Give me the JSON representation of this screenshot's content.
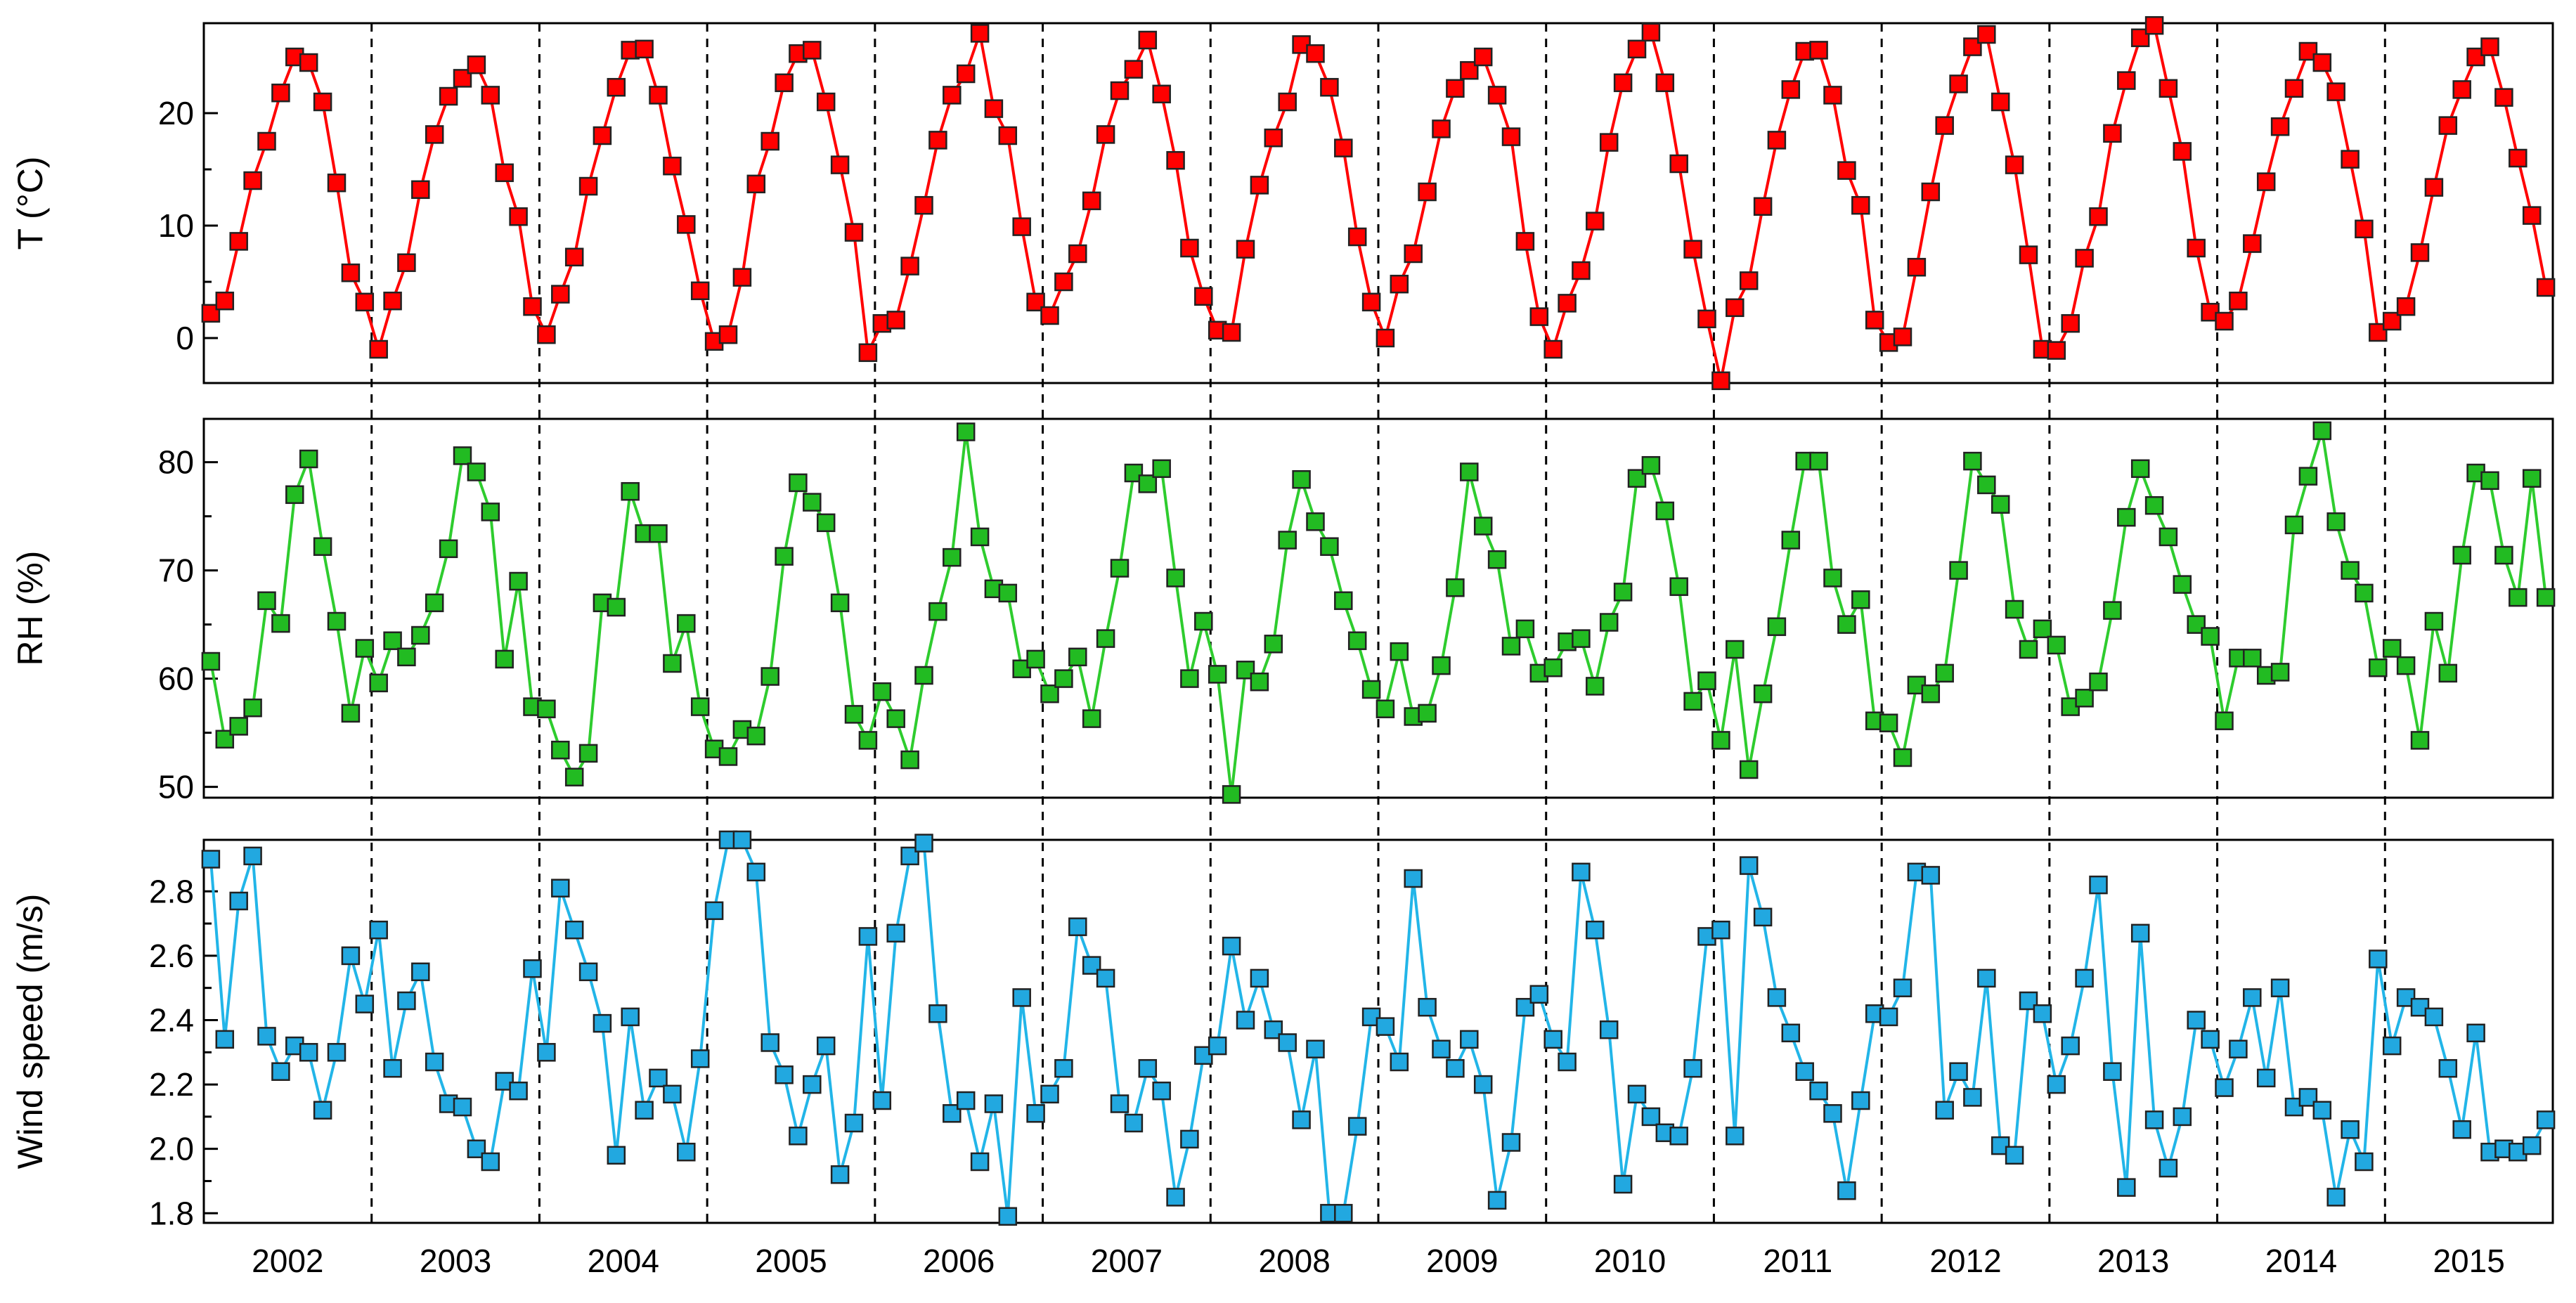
{
  "chart_data": {
    "type": "line",
    "x_start": "2002-01",
    "x_step": "month",
    "years": [
      "2002",
      "2003",
      "2004",
      "2005",
      "2006",
      "2007",
      "2008",
      "2009",
      "2010",
      "2011",
      "2012",
      "2013",
      "2014",
      "2015"
    ],
    "xlim": [
      "2002-01",
      "2015-12"
    ],
    "grid": false,
    "year_separators": "dashed",
    "panels": [
      {
        "ylabel": "T (°C)",
        "color": "#ff0000",
        "marker_fill": "#ff0000",
        "ylim": [
          -4,
          28
        ],
        "yticks": [
          0,
          10,
          20
        ],
        "values": [
          2.2,
          3.3,
          8.6,
          14,
          17.5,
          21.8,
          25,
          24.5,
          21,
          13.8,
          5.8,
          3.2,
          -1,
          3.3,
          6.7,
          13.2,
          18.1,
          21.5,
          23.1,
          24.3,
          21.6,
          14.7,
          10.8,
          2.8,
          0.3,
          3.9,
          7.2,
          13.5,
          18,
          22.3,
          25.6,
          25.7,
          21.6,
          15.3,
          10.1,
          4.2,
          -0.3,
          0.3,
          5.4,
          13.7,
          17.5,
          22.7,
          25.3,
          25.6,
          21,
          15.4,
          9.4,
          -1.3,
          1.3,
          1.6,
          6.4,
          11.8,
          17.6,
          21.6,
          23.5,
          27.1,
          20.4,
          18,
          9.9,
          3.2,
          2,
          5,
          7.5,
          12.2,
          18.1,
          22,
          23.9,
          26.5,
          21.7,
          15.8,
          8,
          3.7,
          0.7,
          0.5,
          7.9,
          13.6,
          17.8,
          21,
          26.1,
          25.3,
          22.3,
          16.9,
          9,
          3.2,
          0,
          4.8,
          7.5,
          13,
          18.6,
          22.2,
          23.8,
          25,
          21.6,
          17.9,
          8.6,
          1.9,
          -1,
          3.1,
          6,
          10.4,
          17.4,
          22.7,
          25.7,
          27.2,
          22.7,
          15.5,
          7.9,
          1.7,
          -3.8,
          2.7,
          5.1,
          11.7,
          17.6,
          22.1,
          25.5,
          25.6,
          21.6,
          14.9,
          11.8,
          1.6,
          -0.4,
          0.1,
          6.3,
          13,
          18.9,
          22.6,
          25.9,
          27,
          21,
          15.4,
          7.4,
          -1,
          -1.1,
          1.3,
          7.1,
          10.8,
          18.2,
          22.9,
          26.7,
          27.8,
          22.2,
          16.6,
          8,
          2.3,
          1.5,
          3.3,
          8.4,
          13.9,
          18.8,
          22.2,
          25.5,
          24.5,
          21.9,
          15.9,
          9.7,
          0.5,
          1.5,
          2.8,
          7.6,
          13.4,
          18.9,
          22.1,
          25,
          25.9,
          21.4,
          16,
          10.9,
          4.5
        ]
      },
      {
        "ylabel": "RH (%)",
        "color": "#2ecc2e",
        "marker_fill": "#22bb22",
        "ylim": [
          49,
          84
        ],
        "yticks": [
          50,
          60,
          70,
          80
        ],
        "values": [
          61.6,
          54.4,
          55.6,
          57.3,
          67.2,
          65.1,
          77,
          80.3,
          72.2,
          65.3,
          56.8,
          62.8,
          59.6,
          63.5,
          62,
          64,
          67,
          72,
          80.6,
          79.1,
          75.4,
          61.8,
          69,
          57.4,
          57.2,
          53.4,
          50.9,
          53.1,
          67,
          66.6,
          77.3,
          73.4,
          73.4,
          61.4,
          65.1,
          57.4,
          53.5,
          52.8,
          55.3,
          54.7,
          60.2,
          71.3,
          78.1,
          76.3,
          74.4,
          67,
          56.7,
          54.3,
          58.8,
          56.3,
          52.5,
          60.3,
          66.2,
          71.2,
          82.8,
          73.1,
          68.3,
          67.9,
          60.9,
          61.8,
          58.6,
          60,
          62,
          56.3,
          63.7,
          70.2,
          79,
          78,
          79.4,
          69.3,
          60,
          65.3,
          60.4,
          49.3,
          60.8,
          59.7,
          63.2,
          72.8,
          78.4,
          74.5,
          72.2,
          67.2,
          63.5,
          59,
          57.2,
          62.5,
          56.5,
          56.8,
          61.2,
          68.4,
          79.1,
          74.1,
          71,
          63,
          64.6,
          60.5,
          61,
          63.4,
          63.7,
          59.3,
          65.2,
          68,
          78.5,
          79.7,
          75.5,
          68.5,
          57.9,
          59.8,
          54.3,
          62.7,
          51.6,
          58.6,
          64.8,
          72.8,
          80.1,
          80.1,
          69.3,
          65,
          67.3,
          56.1,
          55.9,
          52.7,
          59.4,
          58.6,
          60.5,
          70,
          80.1,
          77.9,
          76.1,
          66.4,
          62.7,
          64.6,
          63.1,
          57.4,
          58.2,
          59.7,
          66.3,
          74.9,
          79.4,
          76,
          73.1,
          68.7,
          65,
          63.9,
          56.1,
          61.9,
          61.9,
          60.3,
          60.6,
          74.2,
          78.7,
          82.9,
          74.5,
          70,
          67.9,
          61,
          62.8,
          61.2,
          54.3,
          65.3,
          60.5,
          71.4,
          79,
          78.3,
          71.4,
          67.5,
          78.5,
          67.5
        ]
      },
      {
        "ylabel": "Wind speed (m/s)",
        "color": "#22b5e8",
        "marker_fill": "#22a8e0",
        "ylim": [
          1.77,
          2.96
        ],
        "yticks": [
          1.8,
          2.0,
          2.2,
          2.4,
          2.6,
          2.8
        ],
        "values": [
          2.9,
          2.34,
          2.77,
          2.91,
          2.35,
          2.24,
          2.32,
          2.3,
          2.12,
          2.3,
          2.6,
          2.45,
          2.68,
          2.25,
          2.46,
          2.55,
          2.27,
          2.14,
          2.13,
          2,
          1.96,
          2.21,
          2.18,
          2.56,
          2.3,
          2.81,
          2.68,
          2.55,
          2.39,
          1.98,
          2.41,
          2.12,
          2.22,
          2.17,
          1.99,
          2.28,
          2.74,
          2.96,
          2.96,
          2.86,
          2.33,
          2.23,
          2.04,
          2.2,
          2.32,
          1.92,
          2.08,
          2.66,
          2.15,
          2.67,
          2.91,
          2.95,
          2.42,
          2.11,
          2.15,
          1.96,
          2.14,
          1.79,
          2.47,
          2.11,
          2.17,
          2.25,
          2.69,
          2.57,
          2.53,
          2.14,
          2.08,
          2.25,
          2.18,
          1.85,
          2.03,
          2.29,
          2.32,
          2.63,
          2.4,
          2.53,
          2.37,
          2.33,
          2.09,
          2.31,
          1.8,
          1.8,
          2.07,
          2.41,
          2.38,
          2.27,
          2.84,
          2.44,
          2.31,
          2.25,
          2.34,
          2.2,
          1.84,
          2.02,
          2.44,
          2.48,
          2.34,
          2.27,
          2.86,
          2.68,
          2.37,
          1.89,
          2.17,
          2.1,
          2.05,
          2.04,
          2.25,
          2.66,
          2.68,
          2.04,
          2.88,
          2.72,
          2.47,
          2.36,
          2.24,
          2.18,
          2.11,
          1.87,
          2.15,
          2.42,
          2.41,
          2.5,
          2.86,
          2.85,
          2.12,
          2.24,
          2.16,
          2.53,
          2.01,
          1.98,
          2.46,
          2.42,
          2.2,
          2.32,
          2.53,
          2.82,
          2.24,
          1.88,
          2.67,
          2.09,
          1.94,
          2.1,
          2.4,
          2.34,
          2.19,
          2.31,
          2.47,
          2.22,
          2.5,
          2.13,
          2.16,
          2.12,
          1.85,
          2.06,
          1.96,
          2.59,
          2.32,
          2.47,
          2.44,
          2.41,
          2.25,
          2.06,
          2.36,
          1.99,
          2,
          1.99,
          2.01,
          2.09
        ]
      }
    ]
  }
}
